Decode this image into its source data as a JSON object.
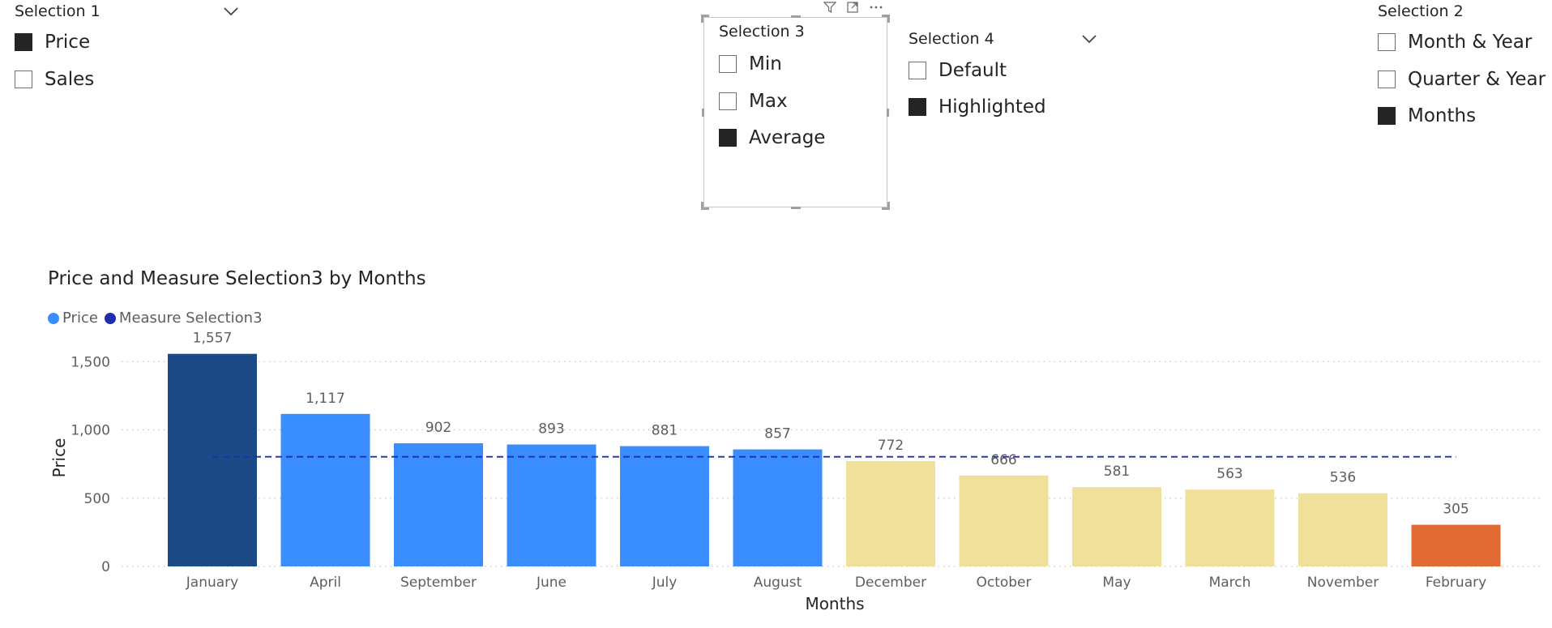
{
  "slicers": {
    "selection1": {
      "title": "Selection 1",
      "options": [
        {
          "label": "Price",
          "checked": true
        },
        {
          "label": "Sales",
          "checked": false
        }
      ]
    },
    "selection3": {
      "title": "Selection 3",
      "options": [
        {
          "label": "Min",
          "checked": false
        },
        {
          "label": "Max",
          "checked": false
        },
        {
          "label": "Average",
          "checked": true
        }
      ]
    },
    "selection4": {
      "title": "Selection 4",
      "options": [
        {
          "label": "Default",
          "checked": false
        },
        {
          "label": "Highlighted",
          "checked": true
        }
      ]
    },
    "selection2": {
      "title": "Selection 2",
      "options": [
        {
          "label": "Month & Year",
          "checked": false
        },
        {
          "label": "Quarter & Year",
          "checked": false
        },
        {
          "label": "Months",
          "checked": true
        }
      ]
    }
  },
  "visual_header_icons": [
    "filter-icon",
    "focus-mode-icon",
    "more-options-icon"
  ],
  "chart_title": "Price and Measure Selection3 by Months",
  "legend": [
    {
      "name": "Price",
      "color": "#3a8dff"
    },
    {
      "name": "Measure Selection3",
      "color": "#1f2db0"
    }
  ],
  "chart_data": {
    "type": "bar",
    "title": "Price and Measure Selection3 by Months",
    "xlabel": "Months",
    "ylabel": "Price",
    "categories": [
      "January",
      "April",
      "September",
      "June",
      "July",
      "August",
      "December",
      "October",
      "May",
      "March",
      "November",
      "February"
    ],
    "series": [
      {
        "name": "Price",
        "values": [
          1557,
          1117,
          902,
          893,
          881,
          857,
          772,
          666,
          581,
          563,
          536,
          305
        ],
        "colors": [
          "#1b4a86",
          "#3a8dff",
          "#3a8dff",
          "#3a8dff",
          "#3a8dff",
          "#3a8dff",
          "#efe19a",
          "#efe19a",
          "#efe19a",
          "#efe19a",
          "#efe19a",
          "#e06b34"
        ]
      },
      {
        "name": "Measure Selection3",
        "type": "dashed-line",
        "value": 803,
        "color": "#1f2db0"
      }
    ],
    "data_labels": [
      "1,557",
      "1,117",
      "902",
      "893",
      "881",
      "857",
      "772",
      "666",
      "581",
      "563",
      "536",
      "305"
    ],
    "y_ticks": [
      0,
      500,
      1000,
      1500
    ],
    "y_tick_labels": [
      "0",
      "500",
      "1,000",
      "1,500"
    ],
    "ylim": [
      0,
      1650
    ],
    "grid": true,
    "legend_position": "top-left"
  }
}
